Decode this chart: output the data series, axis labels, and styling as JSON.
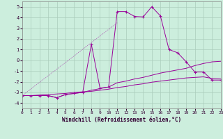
{
  "xlabel": "Windchill (Refroidissement éolien,°C)",
  "background_color": "#cceedd",
  "grid_color": "#aaccbb",
  "line_color": "#990099",
  "xlim": [
    0,
    23
  ],
  "ylim": [
    -4.5,
    5.5
  ],
  "xticks": [
    0,
    1,
    2,
    3,
    4,
    5,
    6,
    7,
    8,
    9,
    10,
    11,
    12,
    13,
    14,
    15,
    16,
    17,
    18,
    19,
    20,
    21,
    22,
    23
  ],
  "yticks": [
    -4,
    -3,
    -2,
    -1,
    0,
    1,
    2,
    3,
    4,
    5
  ],
  "line1_x": [
    0,
    1,
    2,
    3,
    4,
    5,
    6,
    7,
    8,
    9,
    10,
    11,
    12,
    13,
    14,
    15,
    16,
    17,
    18,
    19,
    20,
    21,
    22,
    23
  ],
  "line1_y": [
    -3.3,
    -3.3,
    -3.3,
    -3.3,
    -3.5,
    -3.2,
    -3.1,
    -3.0,
    1.5,
    -2.6,
    -2.5,
    4.55,
    4.55,
    4.1,
    4.05,
    5.0,
    4.15,
    1.0,
    0.7,
    -0.15,
    -1.1,
    -1.1,
    -1.85,
    -1.85
  ],
  "line2_x": [
    0,
    11
  ],
  "line2_y": [
    -3.3,
    3.5
  ],
  "line3_x": [
    0,
    1,
    2,
    3,
    4,
    5,
    6,
    7,
    8,
    9,
    10,
    11,
    12,
    13,
    14,
    15,
    16,
    17,
    18,
    19,
    20,
    21,
    22,
    23
  ],
  "line3_y": [
    -3.3,
    -3.3,
    -3.3,
    -3.3,
    -3.5,
    -3.2,
    -3.1,
    -3.0,
    -2.8,
    -2.65,
    -2.5,
    -2.1,
    -1.95,
    -1.75,
    -1.6,
    -1.4,
    -1.2,
    -1.05,
    -0.9,
    -0.75,
    -0.5,
    -0.3,
    -0.15,
    -0.1
  ],
  "line4_x": [
    0,
    1,
    2,
    3,
    4,
    5,
    6,
    7,
    8,
    9,
    10,
    11,
    12,
    13,
    14,
    15,
    16,
    17,
    18,
    19,
    20,
    21,
    22,
    23
  ],
  "line4_y": [
    -3.3,
    -3.3,
    -3.25,
    -3.2,
    -3.15,
    -3.1,
    -3.0,
    -2.95,
    -2.9,
    -2.8,
    -2.7,
    -2.55,
    -2.45,
    -2.3,
    -2.2,
    -2.05,
    -1.95,
    -1.85,
    -1.75,
    -1.65,
    -1.6,
    -1.55,
    -1.7,
    -1.75
  ]
}
